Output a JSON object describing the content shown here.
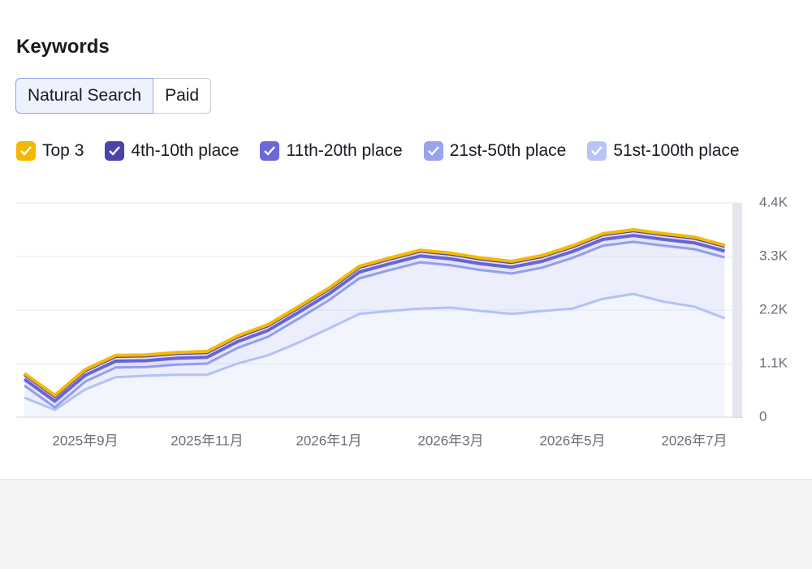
{
  "header": {
    "title": "Keywords"
  },
  "tabs": [
    "Natural Search",
    "Paid"
  ],
  "chart_data": {
    "type": "stacked_area",
    "categories": [
      null,
      null,
      "2025年9月",
      null,
      null,
      null,
      "2025年11月",
      null,
      null,
      null,
      "2026年1月",
      null,
      null,
      null,
      "2026年3月",
      null,
      null,
      null,
      "2026年5月",
      null,
      null,
      null,
      "2026年7月",
      null
    ],
    "series": [
      {
        "name": "Top 3",
        "color": "#f5b800",
        "values": [
          20,
          20,
          20,
          20,
          20,
          20,
          20,
          20,
          20,
          20,
          20,
          20,
          20,
          20,
          20,
          20,
          20,
          20,
          20,
          20,
          20,
          20,
          20,
          20
        ]
      },
      {
        "name": "4th-10th place",
        "color": "#4b43a8",
        "values": [
          100,
          100,
          100,
          100,
          100,
          100,
          100,
          100,
          100,
          100,
          100,
          100,
          100,
          100,
          100,
          100,
          100,
          100,
          100,
          100,
          100,
          100,
          100,
          100
        ]
      },
      {
        "name": "11th-20th place",
        "color": "#6b68d8",
        "values": [
          130,
          130,
          130,
          130,
          130,
          130,
          130,
          130,
          130,
          130,
          130,
          130,
          130,
          130,
          130,
          130,
          130,
          130,
          130,
          130,
          130,
          130,
          130,
          130
        ]
      },
      {
        "name": "21st-50th place",
        "color": "#98a3ef",
        "values": [
          250,
          50,
          160,
          200,
          180,
          210,
          230,
          320,
          380,
          490,
          580,
          730,
          840,
          950,
          870,
          840,
          830,
          890,
          1040,
          1090,
          1070,
          1150,
          1180,
          1250
        ]
      },
      {
        "name": "51st-100th place",
        "color": "#b8c4f7",
        "values": [
          400,
          150,
          570,
          820,
          850,
          870,
          870,
          1100,
          1270,
          1530,
          1820,
          2120,
          2180,
          2230,
          2250,
          2180,
          2120,
          2180,
          2230,
          2430,
          2530,
          2370,
          2270,
          2030
        ]
      }
    ],
    "ylim": [
      0,
      4400
    ],
    "yticks": [
      0,
      {
        "value": 1100,
        "label": "1.1K"
      },
      {
        "value": 2200,
        "label": "2.2K"
      },
      {
        "value": 3300,
        "label": "3.3K"
      },
      {
        "value": 4400,
        "label": "4.4K"
      }
    ],
    "grid": true
  }
}
